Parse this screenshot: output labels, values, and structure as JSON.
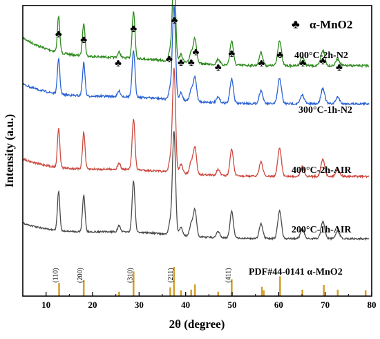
{
  "chart_data": {
    "type": "line",
    "xlabel": "2θ (degree)",
    "ylabel": "Intensity (a.u.)",
    "xlim": [
      5,
      80
    ],
    "x_ticks": [
      "10",
      "20",
      "30",
      "40",
      "50",
      "60",
      "70",
      "80"
    ],
    "y_ticks_shown": false,
    "grid": false,
    "legend": {
      "symbol": "♣",
      "text": "α-MnO2",
      "position": "top-right"
    },
    "peak_marker_symbol": "♣",
    "series": [
      {
        "name": "400°C-2h-N2",
        "color": "#2e8b1e"
      },
      {
        "name": "300°C-1h-N2",
        "color": "#2a62d4"
      },
      {
        "name": "400°C-2h-AIR",
        "color": "#cc4a40"
      },
      {
        "name": "200°C-1h-AIR",
        "color": "#4a4a4a"
      }
    ],
    "peaks_2theta": [
      12.7,
      18.1,
      25.7,
      28.8,
      36.7,
      37.5,
      39.0,
      41.2,
      42.0,
      47.0,
      49.9,
      56.2,
      60.2,
      65.1,
      69.5,
      72.7
    ],
    "peak_intensity_rel": [
      0.32,
      0.3,
      0.05,
      0.42,
      0.1,
      0.85,
      0.07,
      0.1,
      0.22,
      0.05,
      0.22,
      0.12,
      0.23,
      0.08,
      0.14,
      0.06
    ],
    "reference": {
      "label": "PDF#44-0141 α-MnO2",
      "color": "#d4a030",
      "lines_2theta": [
        12.8,
        18.1,
        25.7,
        28.8,
        36.7,
        37.5,
        39.0,
        41.2,
        42.0,
        47.0,
        49.9,
        56.4,
        56.8,
        60.3,
        65.1,
        69.7,
        72.7,
        78.7
      ],
      "lines_rel": [
        0.45,
        0.55,
        0.15,
        0.85,
        0.3,
        1.0,
        0.2,
        0.22,
        0.4,
        0.15,
        0.58,
        0.32,
        0.2,
        0.68,
        0.22,
        0.38,
        0.22,
        0.2
      ],
      "hkl": [
        {
          "label": "(110)",
          "x": 12.8
        },
        {
          "label": "(200)",
          "x": 18.1
        },
        {
          "label": "(310)",
          "x": 28.8
        },
        {
          "label": "(211)",
          "x": 37.5
        },
        {
          "label": "(411)",
          "x": 49.9
        }
      ]
    }
  }
}
